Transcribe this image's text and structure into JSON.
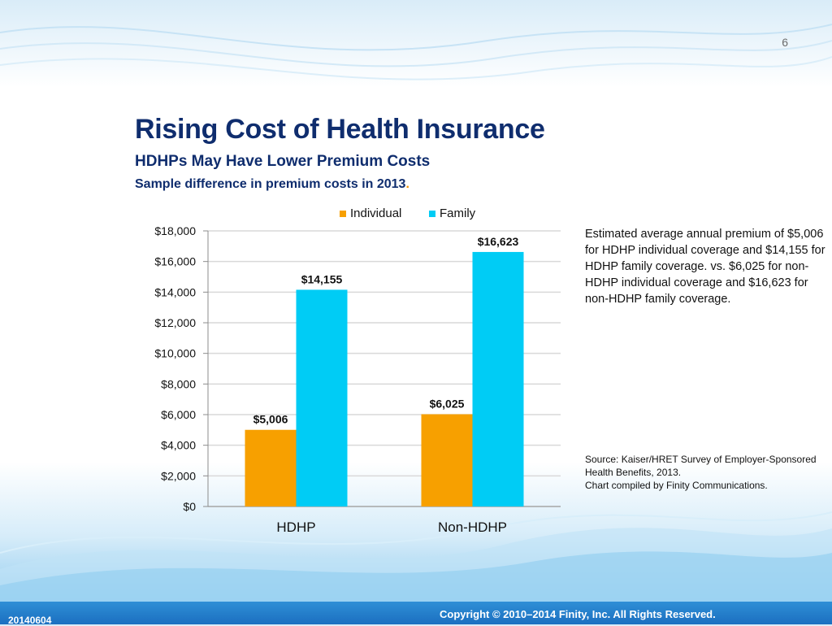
{
  "slide": {
    "page_number": "6",
    "title": "Rising Cost of Health Insurance",
    "subtitle": "HDHPs May Have Lower Premium Costs",
    "subtitle2": "Sample difference in premium costs in 2013",
    "subtitle2_punct": "."
  },
  "note": {
    "text": "Estimated average annual premium of $5,006 for HDHP individual coverage and $14,155 for HDHP family coverage. vs. $6,025 for non-HDHP individual coverage and $16,623 for non-HDHP family coverage."
  },
  "source": {
    "line1": "Source: Kaiser/HRET Survey of Employer-Sponsored Health Benefits, 2013.",
    "line2": "Chart compiled by Finity Communications."
  },
  "footer": {
    "date": "20140604",
    "copyright": "Copyright © 2010–2014 Finity, Inc. All Rights Reserved."
  },
  "colors": {
    "individual": "#f7a000",
    "family": "#00ccf5",
    "title": "#0f2d6e"
  },
  "chart_data": {
    "type": "bar",
    "categories": [
      "HDHP",
      "Non-HDHP"
    ],
    "series": [
      {
        "name": "Individual",
        "values": [
          5006,
          6025
        ],
        "labels": [
          "$5,006",
          "$6,025"
        ]
      },
      {
        "name": "Family",
        "values": [
          14155,
          16623
        ],
        "labels": [
          "$14,155",
          "$16,623"
        ]
      }
    ],
    "ylim": [
      0,
      18000
    ],
    "yticks": [
      0,
      2000,
      4000,
      6000,
      8000,
      10000,
      12000,
      14000,
      16000,
      18000
    ],
    "ytick_labels": [
      "$0",
      "$2,000",
      "$4,000",
      "$6,000",
      "$8,000",
      "$10,000",
      "$12,000",
      "$14,000",
      "$16,000",
      "$18,000"
    ],
    "grid": true,
    "legend": "top-center"
  }
}
